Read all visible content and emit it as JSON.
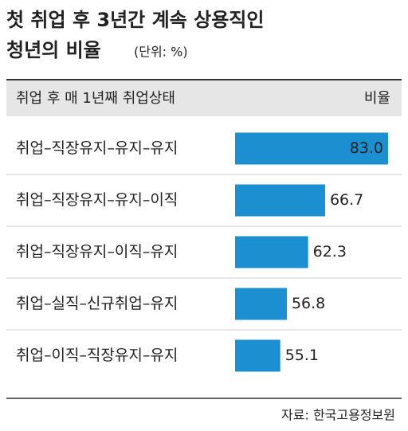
{
  "chart_data": {
    "type": "bar",
    "title_lines": [
      "첫 취업 후 3년간 계속 상용직인",
      "청년의 비율"
    ],
    "unit": "(단위: %)",
    "header": [
      "취업 후 매 1년째 취업상태",
      "비율"
    ],
    "categories": [
      "취업–직장유지–유지–유지",
      "취업–직장유지–유지–이직",
      "취업–직장유지–이직–유지",
      "취업–실직–신규취업–유지",
      "취업–이직–직장유지–유지"
    ],
    "values": [
      83.0,
      66.7,
      62.3,
      56.8,
      55.1
    ],
    "value_labels": [
      "83.0",
      "66.7",
      "62.3",
      "56.8",
      "55.1"
    ],
    "color": "#1b8fcf",
    "xlim": [
      43.4,
      83.0
    ],
    "source": "자료: 한국고용정보원"
  }
}
